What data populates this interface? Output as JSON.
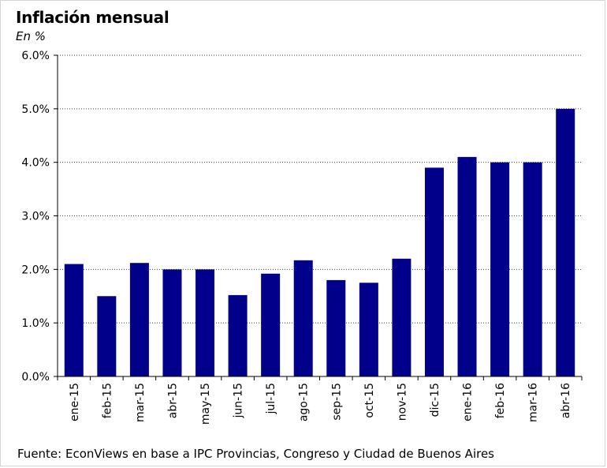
{
  "header": {
    "title": "Inflación mensual",
    "subtitle": "En %"
  },
  "footer": {
    "source": "Fuente: EconViews en base a IPC Provincias, Congreso y Ciudad de Buenos Aires"
  },
  "chart_data": {
    "type": "bar",
    "title": "Inflación mensual",
    "subtitle": "En %",
    "categories": [
      "ene-15",
      "feb-15",
      "mar-15",
      "abr-15",
      "may-15",
      "jun-15",
      "jul-15",
      "ago-15",
      "sep-15",
      "oct-15",
      "nov-15",
      "dic-15",
      "ene-16",
      "feb-16",
      "mar-16",
      "abr-16"
    ],
    "values": [
      2.1,
      1.5,
      2.12,
      2.0,
      2.0,
      1.52,
      1.92,
      2.17,
      1.8,
      1.75,
      2.2,
      3.9,
      4.1,
      4.0,
      4.0,
      5.0
    ],
    "y_ticks": [
      "0.0%",
      "1.0%",
      "2.0%",
      "3.0%",
      "4.0%",
      "5.0%",
      "6.0%"
    ],
    "ylim": [
      0,
      6
    ],
    "grid": "horizontal dotted",
    "bar_color": "#00008B"
  }
}
